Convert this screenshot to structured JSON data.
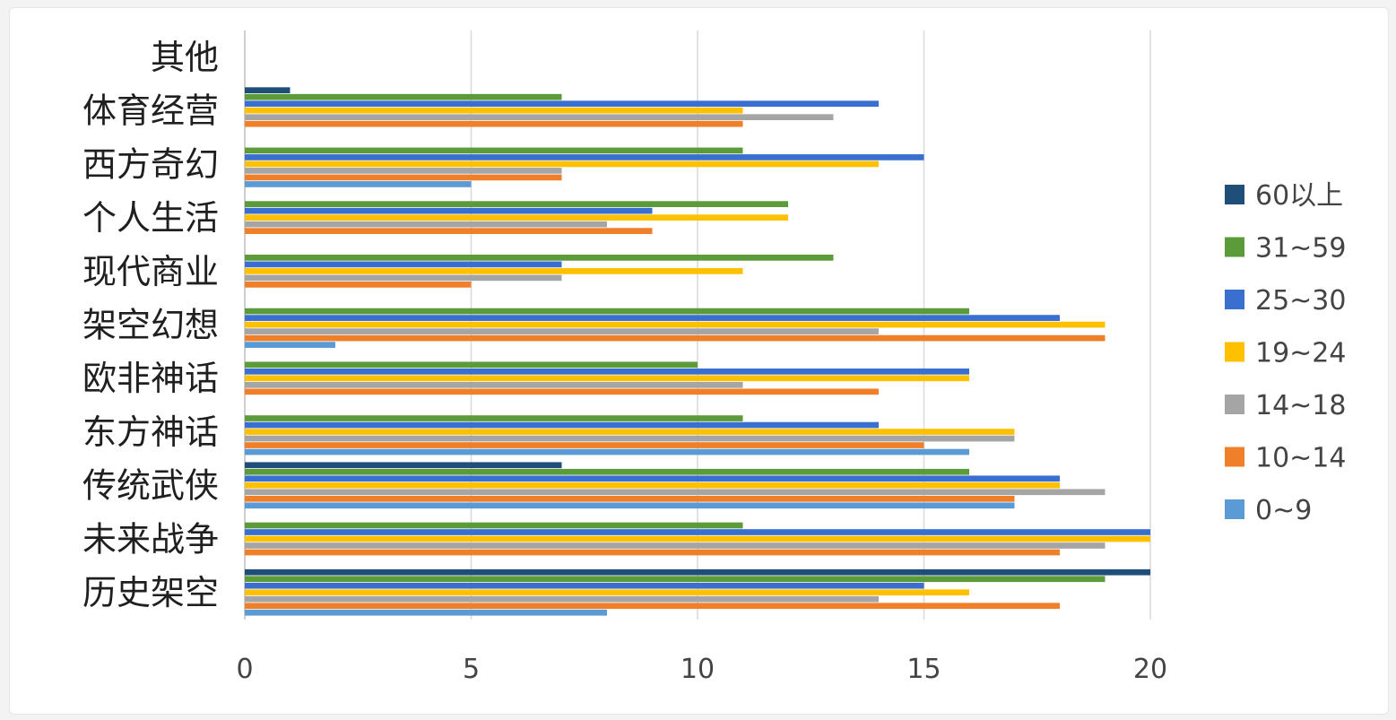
{
  "chart_data": {
    "type": "bar",
    "orientation": "horizontal",
    "categories": [
      "其他",
      "体育经营",
      "西方奇幻",
      "个人生活",
      "现代商业",
      "架空幻想",
      "欧非神话",
      "东方神话",
      "传统武侠",
      "未来战争",
      "历史架空"
    ],
    "series": [
      {
        "name": "60以上",
        "color": "#1f4e79",
        "values": [
          0,
          1,
          0,
          0,
          0,
          0,
          0,
          0,
          7,
          0,
          20
        ]
      },
      {
        "name": "31~59",
        "color": "#5b9b3a",
        "values": [
          0,
          7,
          11,
          12,
          13,
          16,
          10,
          11,
          16,
          11,
          19
        ]
      },
      {
        "name": "25~30",
        "color": "#3a6fd0",
        "values": [
          0,
          14,
          15,
          9,
          7,
          18,
          16,
          14,
          18,
          20,
          15
        ]
      },
      {
        "name": "19~24",
        "color": "#ffc000",
        "values": [
          0,
          11,
          14,
          12,
          11,
          19,
          16,
          17,
          18,
          20,
          16
        ]
      },
      {
        "name": "14~18",
        "color": "#a5a5a5",
        "values": [
          0,
          13,
          7,
          8,
          7,
          14,
          11,
          17,
          19,
          19,
          14
        ]
      },
      {
        "name": "10~14",
        "color": "#f07f29",
        "values": [
          0,
          11,
          7,
          9,
          5,
          19,
          14,
          15,
          17,
          18,
          18
        ]
      },
      {
        "name": "0~9",
        "color": "#5b9bd5",
        "values": [
          0,
          0,
          5,
          0,
          0,
          2,
          0,
          16,
          17,
          0,
          8
        ]
      }
    ],
    "xlim": [
      0,
      20
    ],
    "xticks": [
      "0",
      "5",
      "10",
      "15",
      "20"
    ],
    "grid": true,
    "legend_position": "right",
    "title": "",
    "xlabel": "",
    "ylabel": ""
  }
}
